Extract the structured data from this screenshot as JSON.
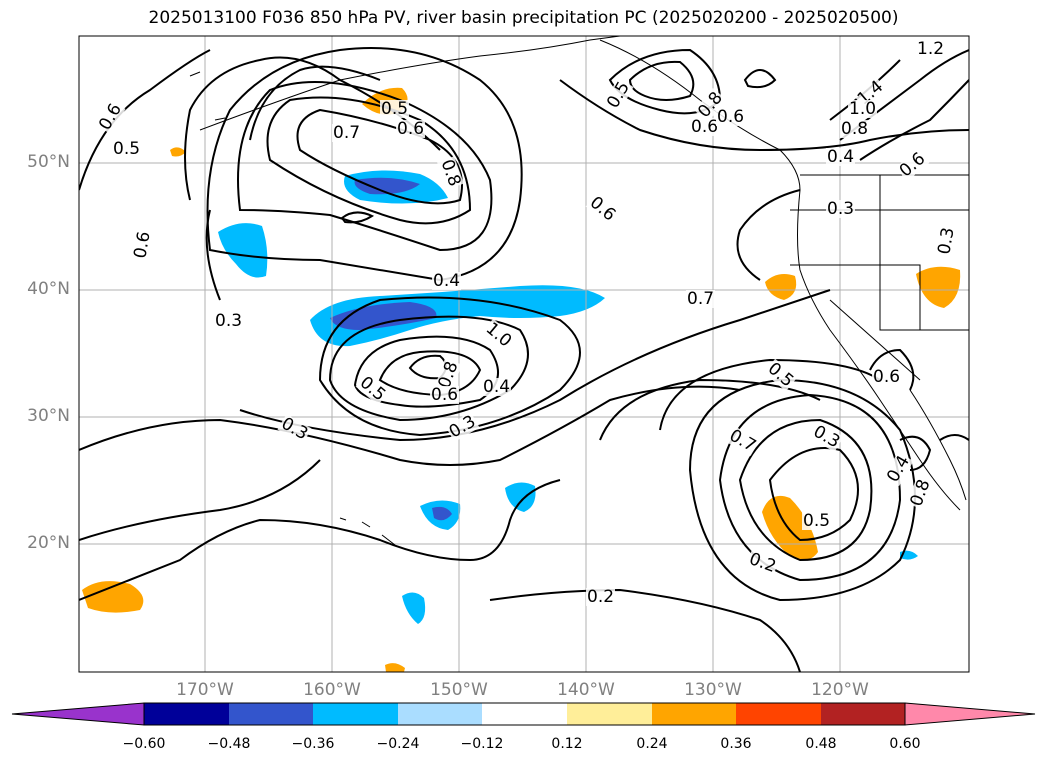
{
  "title": "2025013100 F036 850 hPa PV, river basin precipitation PC (2025020200 - 2025020500)",
  "map": {
    "lat_labels": [
      "50°N",
      "40°N",
      "30°N",
      "20°N"
    ],
    "lon_labels": [
      "170°W",
      "160°W",
      "150°W",
      "140°W",
      "130°W",
      "120°W"
    ],
    "contour_labels": [
      "0.6",
      "0.5",
      "0.5",
      "0.7",
      "0.6",
      "0.8",
      "0.6",
      "0.3",
      "0.5",
      "0.8",
      "0.6",
      "0.6",
      "1.2",
      "1.4",
      "1.0",
      "0.8",
      "0.6",
      "0.4",
      "0.3",
      "0.3",
      "0.6",
      "0.4",
      "0.7",
      "1.0",
      "0.8",
      "0.6",
      "0.5",
      "0.4",
      "0.3",
      "0.3",
      "0.5",
      "0.6",
      "0.7",
      "0.3",
      "0.4",
      "0.8",
      "0.5",
      "0.2",
      "0.2"
    ]
  },
  "colorbar": {
    "colors": [
      "#9933cc",
      "#000099",
      "#3355cc",
      "#00bbff",
      "#aaddff",
      "#ffffff",
      "#ffee99",
      "#ffa500",
      "#ff4400",
      "#b22222",
      "#ff88aa"
    ],
    "extend_low_color": "#9933cc",
    "extend_high_color": "#ff88aa",
    "tick_labels": [
      "−0.60",
      "−0.48",
      "−0.36",
      "−0.24",
      "−0.12",
      "0.12",
      "0.24",
      "0.36",
      "0.48",
      "0.60"
    ]
  }
}
